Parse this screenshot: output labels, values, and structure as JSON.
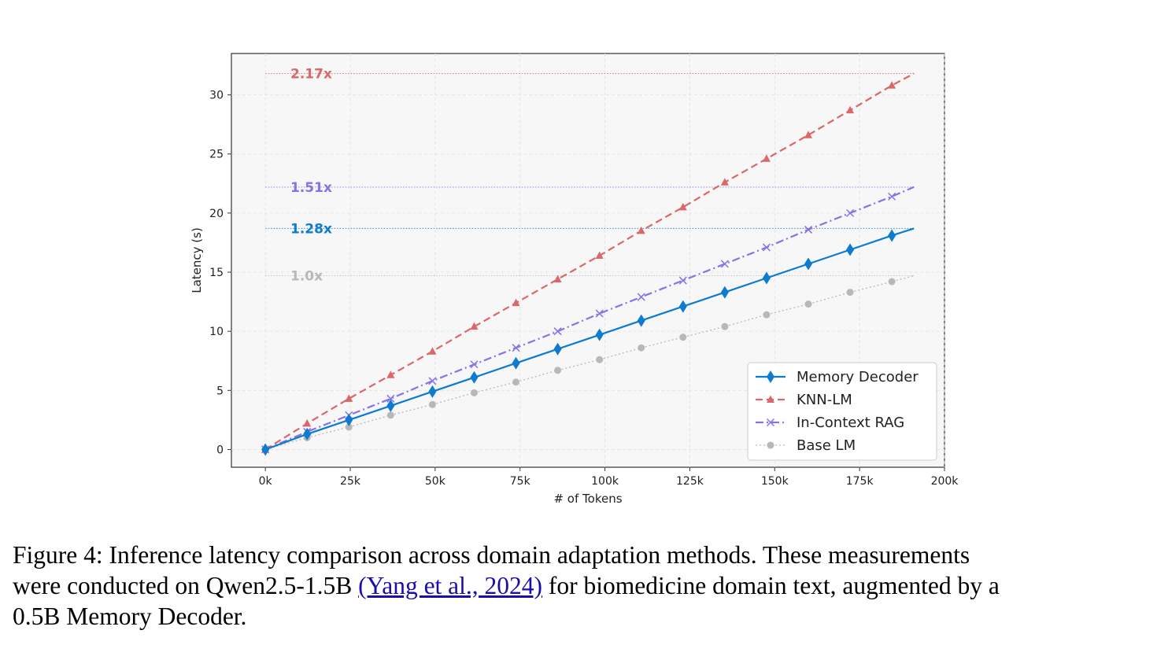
{
  "chart_data": {
    "type": "line",
    "xlabel": "# of Tokens",
    "ylabel": "Latency (s)",
    "xlim": [
      -10000,
      200000
    ],
    "ylim": [
      -1.5,
      33.5
    ],
    "x_ticks": [
      0,
      25000,
      50000,
      75000,
      100000,
      125000,
      150000,
      175000,
      200000
    ],
    "x_tick_labels": [
      "0k",
      "25k",
      "50k",
      "75k",
      "100k",
      "125k",
      "150k",
      "175k",
      "200k"
    ],
    "y_ticks": [
      0,
      5,
      10,
      15,
      20,
      25,
      30
    ],
    "y_tick_labels": [
      "0",
      "5",
      "10",
      "15",
      "20",
      "25",
      "30"
    ],
    "grid": true,
    "legend_position": "bottom-right",
    "x": [
      0,
      12300,
      24600,
      36900,
      49200,
      61500,
      73800,
      86100,
      98400,
      110700,
      123000,
      135300,
      147600,
      159900,
      172200,
      184500,
      191000
    ],
    "series": [
      {
        "name": "Memory Decoder",
        "color": "#0c7bd0",
        "marker": "diamond",
        "line_style": "solid",
        "values": [
          0,
          1.3,
          2.5,
          3.7,
          4.9,
          6.1,
          7.3,
          8.5,
          9.7,
          10.9,
          12.1,
          13.3,
          14.5,
          15.7,
          16.9,
          18.1,
          18.7
        ]
      },
      {
        "name": "KNN-LM",
        "color": "#d9686a",
        "marker": "triangle",
        "line_style": "dashed",
        "values": [
          0,
          2.2,
          4.3,
          6.3,
          8.3,
          10.4,
          12.4,
          14.4,
          16.4,
          18.5,
          20.5,
          22.6,
          24.6,
          26.6,
          28.7,
          30.8,
          31.8
        ]
      },
      {
        "name": "In-Context RAG",
        "color": "#8772e6",
        "marker": "x",
        "line_style": "dashdot",
        "values": [
          0,
          1.5,
          2.9,
          4.3,
          5.8,
          7.2,
          8.6,
          10.0,
          11.5,
          12.9,
          14.3,
          15.7,
          17.1,
          18.6,
          20.0,
          21.4,
          22.2
        ]
      },
      {
        "name": "Base LM",
        "color": "#b8b8b8",
        "marker": "circle",
        "line_style": "dotted",
        "values": [
          0,
          1.0,
          1.9,
          2.9,
          3.8,
          4.8,
          5.7,
          6.7,
          7.6,
          8.6,
          9.5,
          10.4,
          11.4,
          12.3,
          13.3,
          14.2,
          14.7
        ]
      }
    ],
    "annotations": [
      {
        "text": "2.17x",
        "y": 31.8,
        "color": "#d9686a"
      },
      {
        "text": "1.51x",
        "y": 22.2,
        "color": "#8772e6"
      },
      {
        "text": "1.28x",
        "y": 18.7,
        "color": "#0c7bd0"
      },
      {
        "text": "1.0x",
        "y": 14.7,
        "color": "#b8b8b8"
      }
    ]
  },
  "caption": {
    "line1": "Figure 4: Inference latency comparison across domain adaptation methods. These measurements",
    "line2_pre": "were conducted on Qwen2.5-1.5B ",
    "line2_cite": "(Yang et al., 2024)",
    "line2_post": " for biomedicine domain text, augmented by a",
    "line3": "0.5B Memory Decoder."
  }
}
